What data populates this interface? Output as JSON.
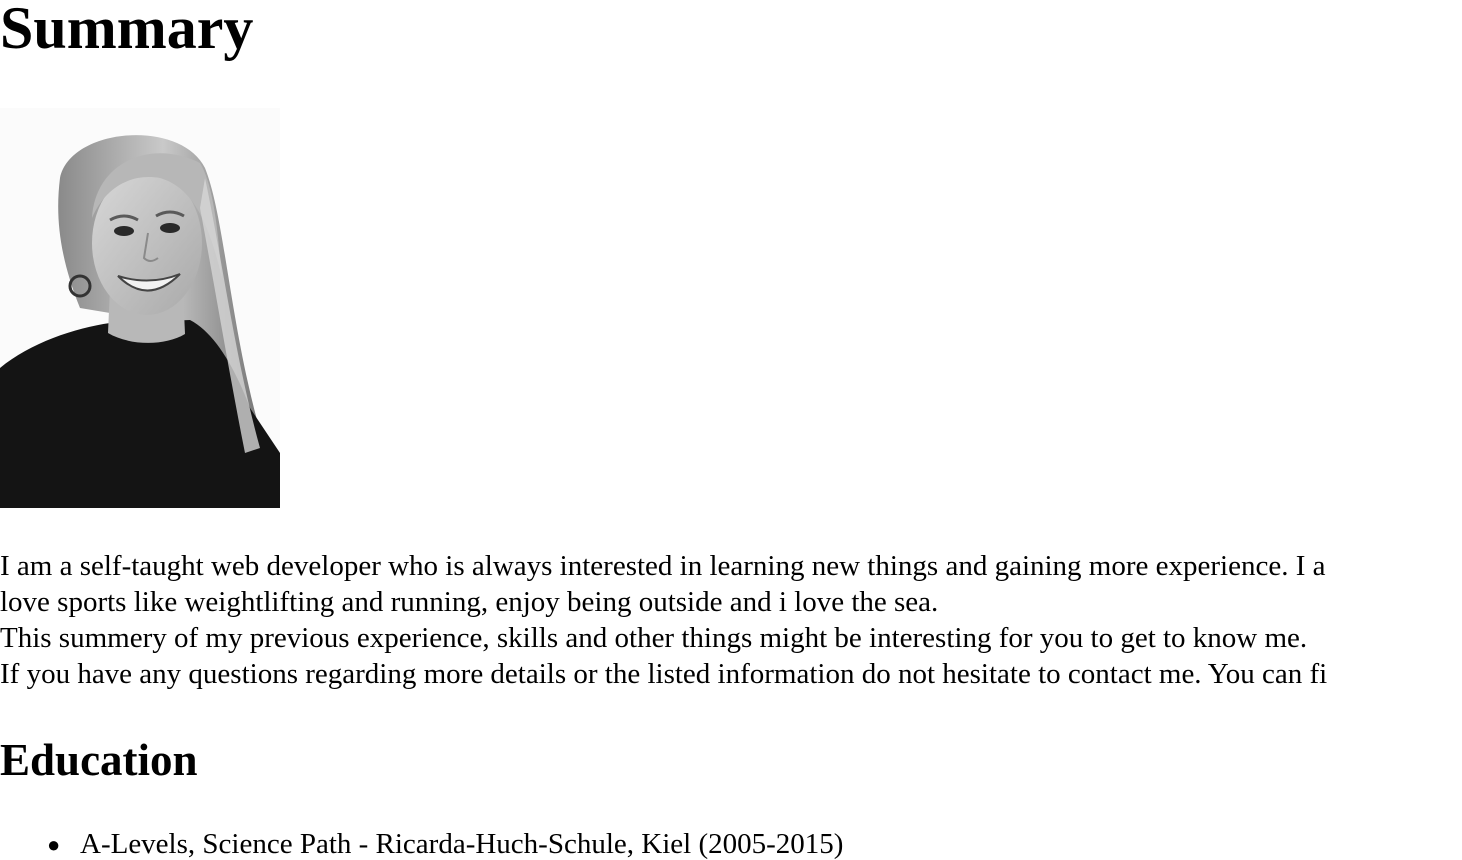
{
  "summary": {
    "heading": "Summary",
    "lines": [
      "I am a self-taught web developer who is always interested in learning new things and gaining more experience. I a",
      "love sports like weightlifting and running, enjoy being outside and i love the sea.",
      "This summery of my previous experience, skills and other things might be interesting for you to get to know me.",
      "If you have any questions regarding more details or the listed information do not hesitate to contact me. You can fi"
    ]
  },
  "education": {
    "heading": "Education",
    "items": [
      "A-Levels, Science Path - Ricarda-Huch-Schule, Kiel (2005-2015)"
    ]
  }
}
